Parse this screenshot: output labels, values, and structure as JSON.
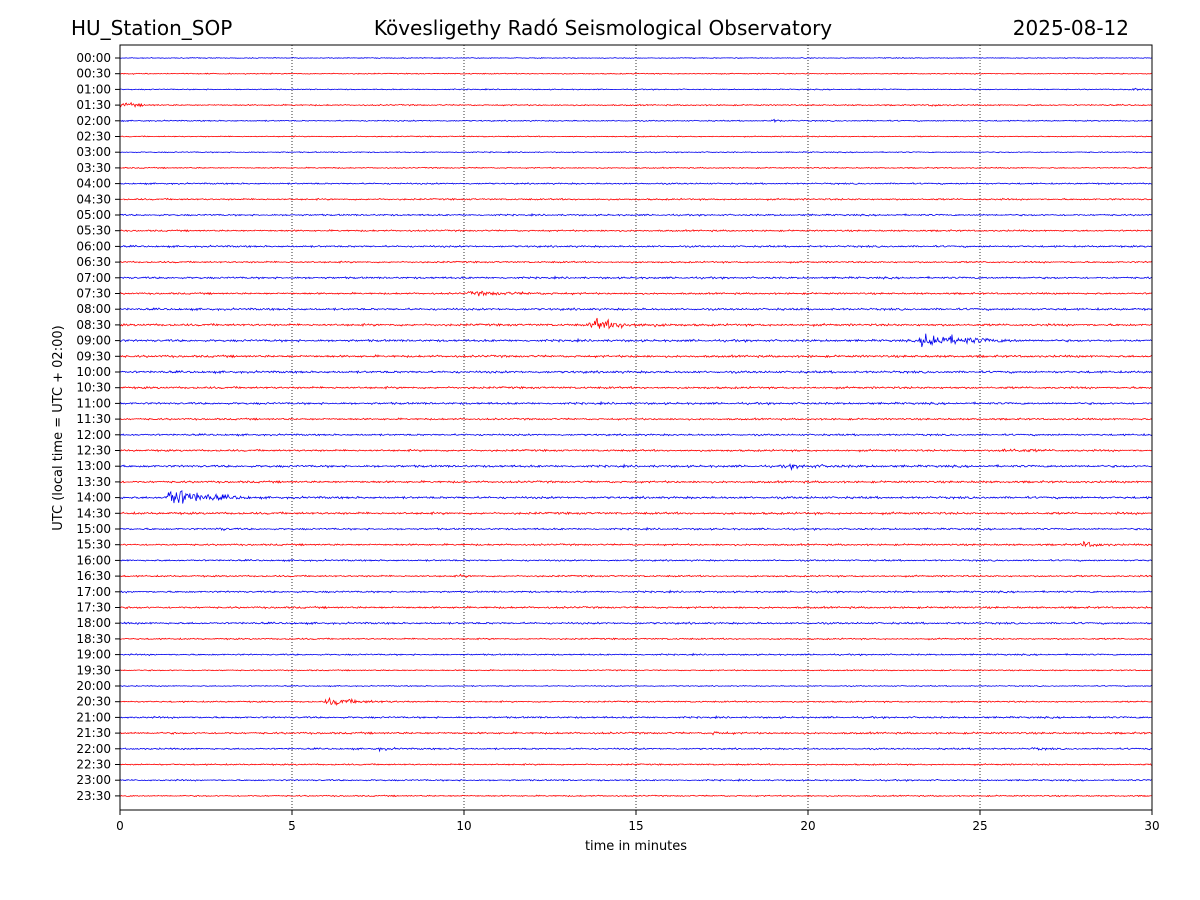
{
  "chart_data": {
    "type": "line",
    "header": {
      "station": "HU_Station_SOP",
      "title": "Kövesligethy Radó Seismological Observatory",
      "date": "2025-08-12"
    },
    "xlabel": "time in minutes",
    "ylabel": "UTC (local time = UTC + 02:00)",
    "xlim": [
      0,
      30
    ],
    "x_ticks": [
      0,
      5,
      10,
      15,
      20,
      25,
      30
    ],
    "grid": "vertical dotted at x ticks",
    "trace_colors": [
      "#0000ee",
      "#ff0000"
    ],
    "rows": [
      "00:00",
      "00:30",
      "01:00",
      "01:30",
      "02:00",
      "02:30",
      "03:00",
      "03:30",
      "04:00",
      "04:30",
      "05:00",
      "05:30",
      "06:00",
      "06:30",
      "07:00",
      "07:30",
      "08:00",
      "08:30",
      "09:00",
      "09:30",
      "10:00",
      "10:30",
      "11:00",
      "11:30",
      "12:00",
      "12:30",
      "13:00",
      "13:30",
      "14:00",
      "14:30",
      "15:00",
      "15:30",
      "16:00",
      "16:30",
      "17:00",
      "17:30",
      "18:00",
      "18:30",
      "19:00",
      "19:30",
      "20:00",
      "20:30",
      "21:00",
      "21:30",
      "22:00",
      "22:30",
      "23:00",
      "23:30"
    ],
    "noise_levels": [
      0.12,
      0.14,
      0.14,
      0.18,
      0.16,
      0.14,
      0.14,
      0.16,
      0.2,
      0.22,
      0.22,
      0.22,
      0.24,
      0.22,
      0.26,
      0.24,
      0.28,
      0.3,
      0.3,
      0.3,
      0.3,
      0.28,
      0.28,
      0.24,
      0.24,
      0.26,
      0.3,
      0.28,
      0.3,
      0.3,
      0.24,
      0.24,
      0.22,
      0.22,
      0.24,
      0.26,
      0.26,
      0.2,
      0.2,
      0.16,
      0.14,
      0.2,
      0.24,
      0.26,
      0.22,
      0.2,
      0.2,
      0.18
    ],
    "events": [
      {
        "row": "01:00",
        "start": 29.3,
        "duration": 0.7,
        "amplitude": 0.5
      },
      {
        "row": "01:30",
        "start": 0.0,
        "duration": 1.2,
        "amplitude": 0.9
      },
      {
        "row": "01:30",
        "start": 23.5,
        "duration": 0.8,
        "amplitude": 0.4
      },
      {
        "row": "02:00",
        "start": 18.9,
        "duration": 0.7,
        "amplitude": 0.5
      },
      {
        "row": "07:30",
        "start": 10.0,
        "duration": 4.0,
        "amplitude": 0.6
      },
      {
        "row": "08:30",
        "start": 13.6,
        "duration": 2.5,
        "amplitude": 2.0
      },
      {
        "row": "09:00",
        "start": 23.2,
        "duration": 3.0,
        "amplitude": 3.0
      },
      {
        "row": "12:30",
        "start": 25.5,
        "duration": 2.5,
        "amplitude": 0.5
      },
      {
        "row": "13:00",
        "start": 19.2,
        "duration": 3.0,
        "amplitude": 0.5
      },
      {
        "row": "14:00",
        "start": 1.3,
        "duration": 2.5,
        "amplitude": 3.8
      },
      {
        "row": "15:00",
        "start": 2.8,
        "duration": 0.8,
        "amplitude": 0.5
      },
      {
        "row": "15:30",
        "start": 27.9,
        "duration": 1.2,
        "amplitude": 1.1
      },
      {
        "row": "16:30",
        "start": 9.8,
        "duration": 0.5,
        "amplitude": 0.6
      },
      {
        "row": "20:30",
        "start": 5.9,
        "duration": 2.5,
        "amplitude": 1.2
      },
      {
        "row": "21:30",
        "start": 17.2,
        "duration": 0.8,
        "amplitude": 0.5
      },
      {
        "row": "22:00",
        "start": 7.4,
        "duration": 1.0,
        "amplitude": 0.5
      },
      {
        "row": "22:00",
        "start": 26.5,
        "duration": 0.8,
        "amplitude": 0.4
      }
    ]
  }
}
